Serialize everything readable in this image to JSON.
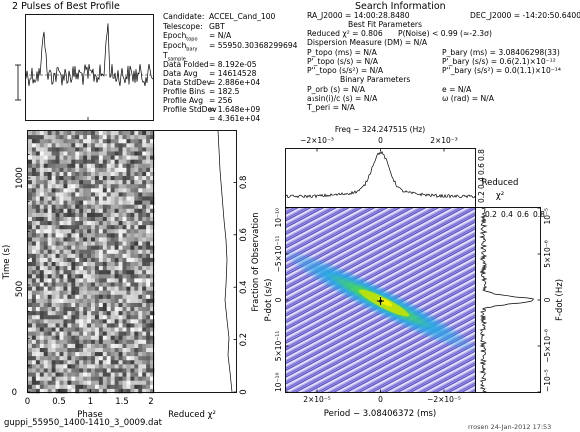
{
  "title": "2 Pulses of Best Profile",
  "footer_file": "guppi_55950_1400-1410_3_0009.dat",
  "footer_user": "rrosen 24-Jan-2012 17:53",
  "info_col1": [
    {
      "label": "Candidate:",
      "value": "ACCEL_Cand_100"
    },
    {
      "label": "Telescope:",
      "value": "GBT"
    },
    {
      "label": "Epoch_topo",
      "value": "= N/A"
    },
    {
      "label": "Epoch_bary",
      "value": "= 55950.30368299694"
    },
    {
      "label": "T_sample",
      "value": ""
    },
    {
      "label": "Data Folded",
      "value": "= 8.192e-05"
    },
    {
      "label": "Data Avg",
      "value": "= 14614528"
    },
    {
      "label": "Data StdDev",
      "value": "= 2.886e+04"
    },
    {
      "label": "Profile Bins",
      "value": "= 182.5"
    },
    {
      "label": "Profile Avg",
      "value": "= 256"
    },
    {
      "label": "Profile StdDev",
      "value": "= 1.648e+09"
    },
    {
      "label": "",
      "value": "= 4.361e+04"
    }
  ],
  "search_info": {
    "heading": "Search Information",
    "ra": "RA_J2000 = 14:00:28.8480",
    "dec": "DEC_J2000 = -14:20:50.6400",
    "best_fit": "Best Fit Parameters",
    "reduced_chi": "Reduced χ² = 0.806",
    "pnoise": "P(Noise) < 0.99",
    "sigma": "(≈-2.3σ)",
    "dm": "Dispersion Measure (DM) = N/A",
    "p_topo": "P_topo (ms) = N/A",
    "pd_topo": "P'_topo (s/s) = N/A",
    "pdd_topo": "P''_topo (s/s²) = N/A",
    "p_bary": "P_bary (ms) = 3.08406298(33)",
    "pd_bary": "P'_bary (s/s) = 0.6(2.1)×10⁻¹²",
    "pdd_bary": "P''_bary (s/s²) = 0.0(1.1)×10⁻¹⁴",
    "binary": "Binary Parameters",
    "p_orb": "P_orb (s) = N/A",
    "a1sini": "a₁sin(i)/c (s) = N/A",
    "t_peri": "T_peri = N/A",
    "e": "e = N/A",
    "omega": "ω (rad) = N/A"
  },
  "time_phase": {
    "ylabel": "Time (s)",
    "xlabel": "Phase",
    "yticks": [
      "0",
      "500",
      "1000"
    ],
    "xticks": [
      "0",
      "0.5",
      "1",
      "1.5",
      "2"
    ]
  },
  "chi_panel": {
    "xlabel": "Reduced χ²",
    "ylabel": "Fraction of Observation",
    "yticks": [
      "0",
      "0.2",
      "0.4",
      "0.6",
      "0.8"
    ]
  },
  "freq_panel": {
    "label": "Freq − 324.247515 (Hz)",
    "xticks": [
      "−2×10⁻³",
      "0",
      "2×10⁻³"
    ],
    "ylabel_top": "Reduced",
    "ylabel_chi": "χ²",
    "yticks": [
      "0.2",
      "0.4",
      "0.6",
      "0.8"
    ]
  },
  "pp_panel": {
    "xlabel": "Period − 3.08406372 (ms)",
    "ylabel": "P-dot (s/s)",
    "xticks": [
      "2×10⁻⁵",
      "0",
      "−2×10⁻⁵"
    ],
    "yticks": [
      "10⁻¹⁰",
      "−5×10⁻¹¹",
      "0",
      "5×10⁻¹¹",
      "10⁻¹⁰"
    ]
  },
  "fdot_panel": {
    "ylabel": "F-dot (Hz)",
    "xticks": [
      "0.2",
      "0.4",
      "0.6",
      "0.8"
    ],
    "yticks": [
      "10⁻⁵",
      "5×10⁻⁶",
      "0",
      "−5×10⁻⁶",
      "−10⁻⁵"
    ]
  }
}
